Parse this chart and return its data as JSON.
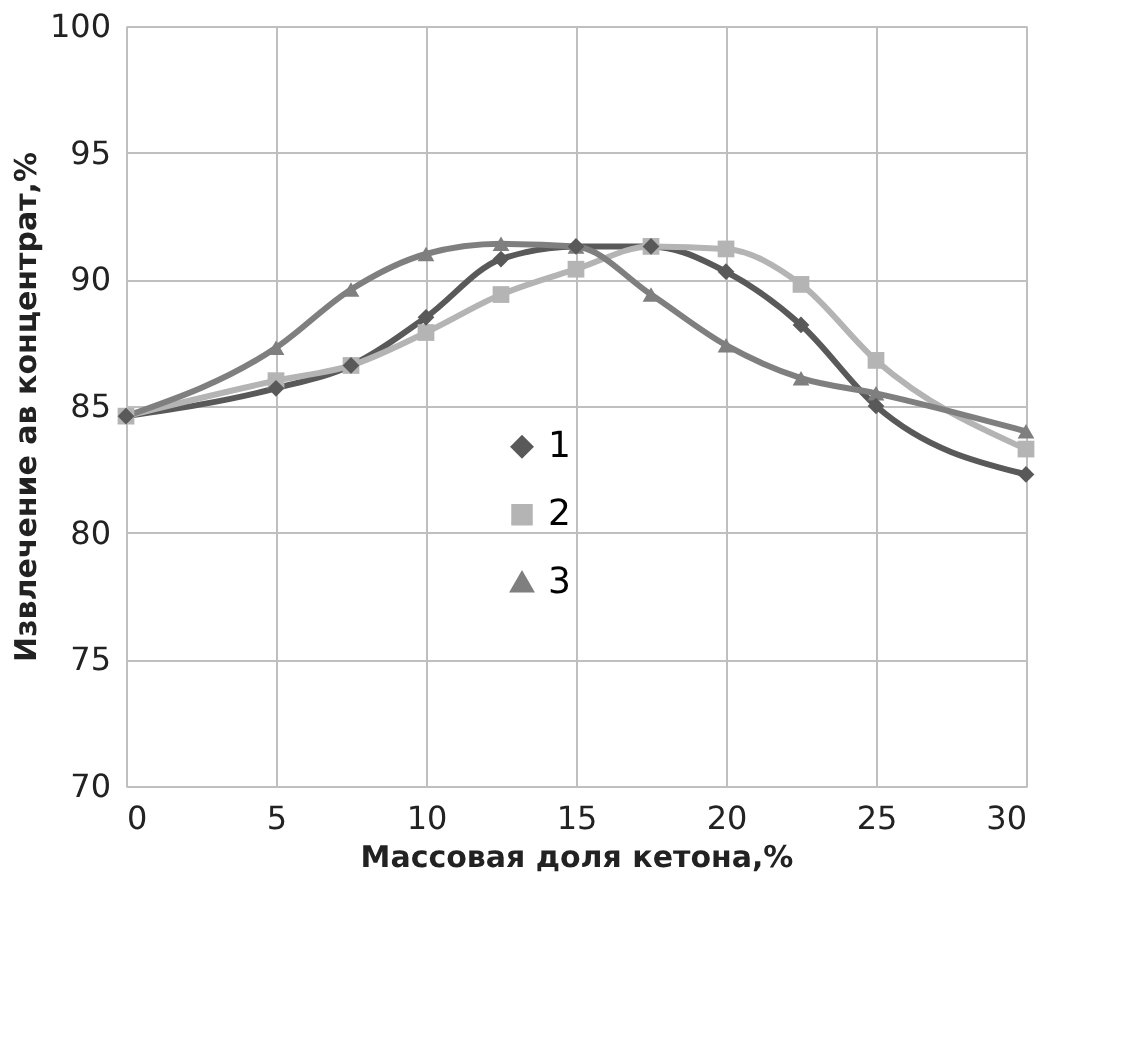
{
  "chart_data": {
    "type": "line",
    "xlabel": "Массовая доля кетона,%",
    "ylabel": "Извлечение ав концентрат,%",
    "x": [
      0,
      5,
      7.5,
      10,
      12.5,
      15,
      17.5,
      20,
      22.5,
      25,
      30
    ],
    "xlim": [
      0,
      30
    ],
    "xticks": [
      0,
      5,
      10,
      15,
      20,
      25,
      30
    ],
    "ylim": [
      70,
      100
    ],
    "yticks": [
      70,
      75,
      80,
      85,
      90,
      95,
      100
    ],
    "grid": true,
    "legend": "center",
    "line_style": "solid",
    "series": [
      {
        "name": "1",
        "color": "#595959",
        "marker": "diamond",
        "values": [
          84.6,
          85.7,
          86.6,
          88.5,
          90.8,
          91.3,
          91.3,
          90.3,
          88.2,
          85.0,
          82.3
        ]
      },
      {
        "name": "2",
        "color": "#b4b4b4",
        "marker": "square",
        "values": [
          84.6,
          86.0,
          86.6,
          87.9,
          89.4,
          90.4,
          91.3,
          91.2,
          89.8,
          86.8,
          83.3
        ]
      },
      {
        "name": "3",
        "color": "#7f7f7f",
        "marker": "triangle",
        "values": [
          84.6,
          87.3,
          89.6,
          91.0,
          91.4,
          91.3,
          89.4,
          87.4,
          86.1,
          85.5,
          84.0
        ]
      }
    ]
  }
}
